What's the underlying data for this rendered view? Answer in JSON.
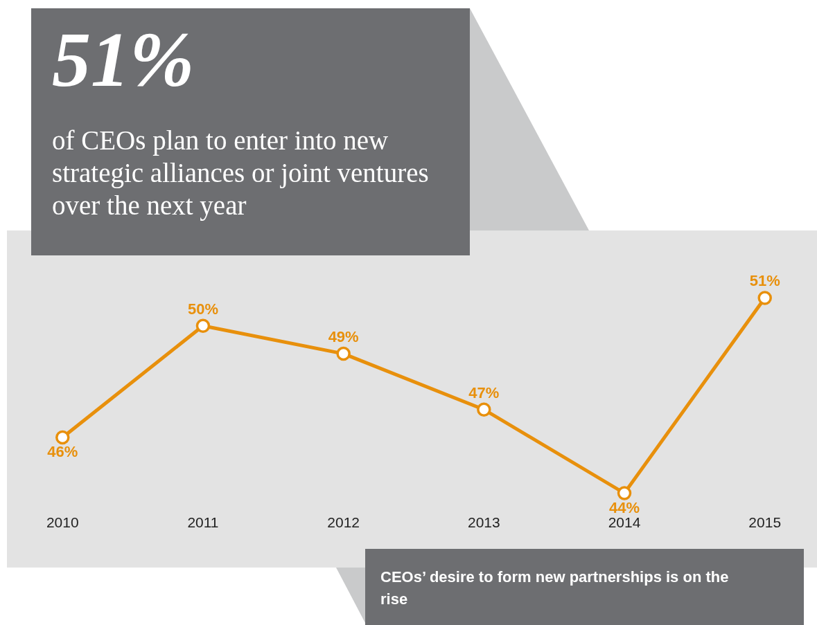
{
  "chart_data": {
    "type": "line",
    "title": "51%",
    "subtitle": "of CEOs plan to enter into new strategic alliances or joint ventures over the next year",
    "categories": [
      "2010",
      "2011",
      "2012",
      "2013",
      "2014",
      "2015"
    ],
    "series": [
      {
        "color": "#e8900c",
        "values": [
          46,
          50,
          49,
          47,
          44,
          51
        ],
        "value_labels": [
          "46%",
          "50%",
          "49%",
          "47%",
          "44%",
          "51%"
        ]
      }
    ],
    "marker": "circle",
    "line_style": "solid",
    "grid": false,
    "tick_labels": "x",
    "annotations": [
      "CEOs’ desire to form new partnerships is on the rise"
    ]
  }
}
